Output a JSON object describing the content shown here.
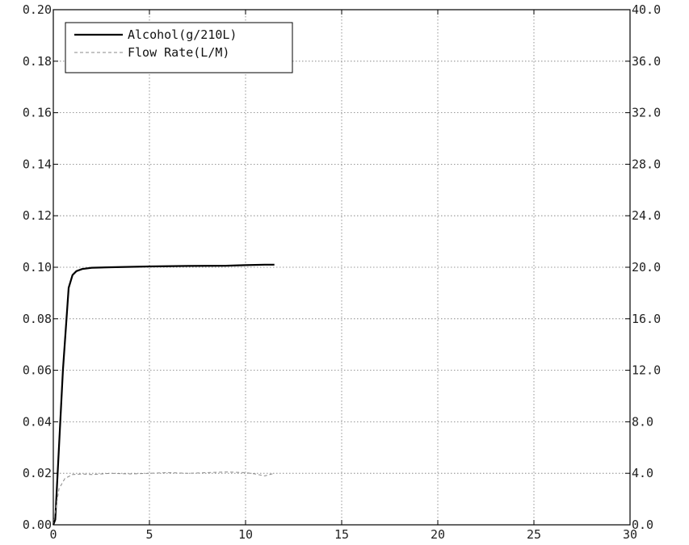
{
  "chart_data": {
    "type": "line",
    "grid": true,
    "grid_style": "dotted",
    "legend_placement": "top-left",
    "xlim": [
      0,
      30
    ],
    "ylim_left": [
      0.0,
      0.2
    ],
    "ylim_right": [
      0.0,
      40.0
    ],
    "x_ticks": [
      "0",
      "5",
      "10",
      "15",
      "20",
      "25",
      "30"
    ],
    "y_left_ticks": [
      "0.00",
      "0.02",
      "0.04",
      "0.06",
      "0.08",
      "0.10",
      "0.12",
      "0.14",
      "0.16",
      "0.18",
      "0.20"
    ],
    "y_right_ticks": [
      "0.0",
      "4.0",
      "8.0",
      "12.0",
      "16.0",
      "20.0",
      "24.0",
      "28.0",
      "32.0",
      "36.0",
      "40.0"
    ],
    "series": [
      {
        "name": "Alcohol(g/210L)",
        "axis": "left",
        "style": "solid",
        "color": "#000000",
        "x": [
          0.0,
          0.1,
          0.5,
          0.8,
          1.0,
          1.2,
          1.5,
          2.0,
          3.0,
          5.0,
          7.0,
          9.0,
          10.0,
          11.0,
          11.5
        ],
        "y": [
          0.0,
          0.002,
          0.06,
          0.092,
          0.097,
          0.0985,
          0.0993,
          0.0998,
          0.1,
          0.1003,
          0.1005,
          0.1006,
          0.1008,
          0.101,
          0.101
        ]
      },
      {
        "name": "Flow Rate(L/M)",
        "axis": "right",
        "style": "dashed",
        "color": "#888888",
        "x": [
          0.0,
          0.1,
          0.3,
          0.6,
          1.0,
          1.5,
          2.0,
          3.0,
          4.0,
          5.0,
          6.0,
          7.0,
          8.0,
          9.0,
          10.0,
          10.5,
          11.0,
          11.5
        ],
        "y": [
          0.0,
          1.0,
          2.8,
          3.6,
          3.9,
          3.95,
          3.9,
          4.0,
          3.95,
          4.0,
          4.05,
          4.0,
          4.05,
          4.1,
          4.05,
          3.95,
          3.8,
          4.0
        ]
      }
    ]
  }
}
